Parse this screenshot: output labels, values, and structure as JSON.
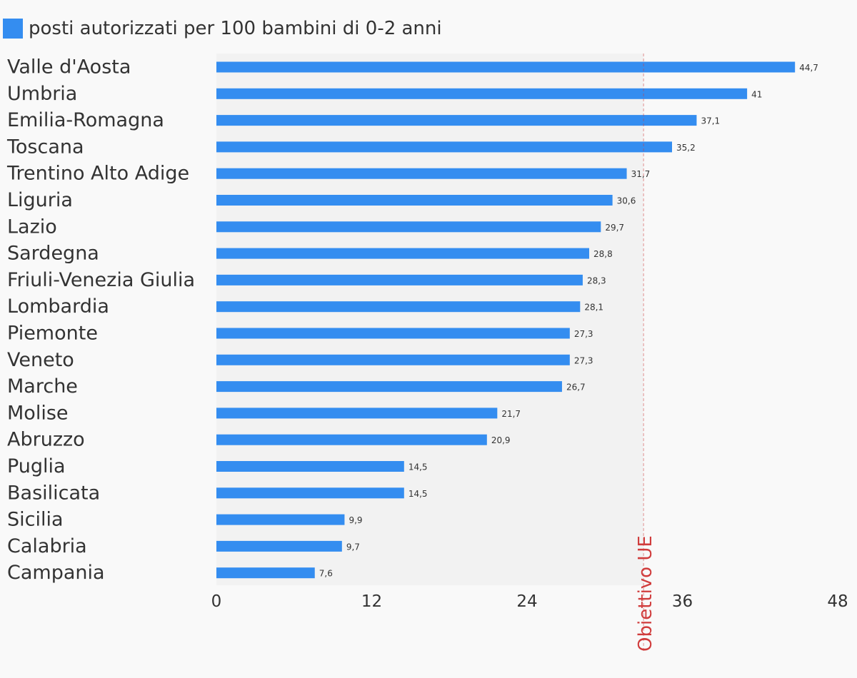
{
  "chart_data": {
    "type": "bar",
    "orientation": "horizontal",
    "series": [
      {
        "name": "posti autorizzati per 100 bambini di 0-2 anni",
        "color": "#348df0",
        "values": [
          44.7,
          41,
          37.1,
          35.2,
          31.7,
          30.6,
          29.7,
          28.8,
          28.3,
          28.1,
          27.3,
          27.3,
          26.7,
          21.7,
          20.9,
          14.5,
          14.5,
          9.9,
          9.7,
          7.6
        ],
        "value_labels": [
          "44,7",
          "41",
          "37,1",
          "35,2",
          "31,7",
          "30,6",
          "29,7",
          "28,8",
          "28,3",
          "28,1",
          "27,3",
          "27,3",
          "26,7",
          "21,7",
          "20,9",
          "14,5",
          "14,5",
          "9,9",
          "9,7",
          "7,6"
        ]
      }
    ],
    "categories": [
      "Valle d'Aosta",
      "Umbria",
      "Emilia-Romagna",
      "Toscana",
      "Trentino Alto Adige",
      "Liguria",
      "Lazio",
      "Sardegna",
      "Friuli-Venezia Giulia",
      "Lombardia",
      "Piemonte",
      "Veneto",
      "Marche",
      "Molise",
      "Abruzzo",
      "Puglia",
      "Basilicata",
      "Sicilia",
      "Calabria",
      "Campania"
    ],
    "xlim": [
      0,
      48
    ],
    "xticks": [
      0,
      12,
      24,
      36,
      48
    ],
    "xtick_labels": [
      "0",
      "12",
      "24",
      "36",
      "48"
    ],
    "reference_line": {
      "value": 33,
      "label": "Obiettivo UE",
      "color": "#d03c3c"
    },
    "shaded_region": {
      "from": 0,
      "to": 33,
      "color": "#f2f2f2"
    },
    "legend": {
      "position": "top-left"
    },
    "grid": false,
    "background": "#f9f9f9",
    "text_color": "#333333"
  }
}
